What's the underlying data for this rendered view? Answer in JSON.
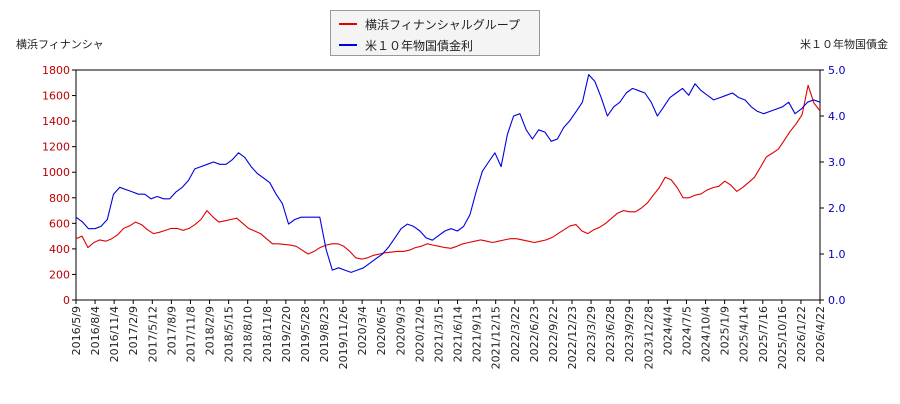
{
  "chart_data": {
    "type": "line",
    "left_axis_label": "横浜フィナンシャ",
    "right_axis_label": "米１０年物国債金",
    "y_left": {
      "min": 0,
      "max": 1800,
      "ticks": [
        "0",
        "200",
        "400",
        "600",
        "800",
        "1000",
        "1200",
        "1400",
        "1600",
        "1800"
      ]
    },
    "y_right": {
      "min": 0,
      "max": 5,
      "ticks": [
        "0.0",
        "1.0",
        "2.0",
        "3.0",
        "4.0",
        "5.0"
      ]
    },
    "x_tick_labels": [
      "2016/5/9",
      "2016/8/4",
      "2016/11/4",
      "2017/2/9",
      "2017/5/12",
      "2017/8/9",
      "2017/11/8",
      "2018/2/9",
      "2018/5/15",
      "2018/8/10",
      "2018/11/8",
      "2019/2/20",
      "2019/5/28",
      "2019/8/23",
      "2019/11/26",
      "2020/3/4",
      "2020/6/5",
      "2020/9/3",
      "2020/12/9",
      "2021/3/15",
      "2021/6/14",
      "2021/9/13",
      "2021/12/15",
      "2022/3/22",
      "2022/6/23",
      "2022/9/22",
      "2022/12/23",
      "2023/3/29",
      "2023/6/28",
      "2023/9/29",
      "2023/12/28",
      "2024/4/4",
      "2024/7/5",
      "2024/10/4",
      "2025/1/9",
      "2025/4/14",
      "2025/7/16",
      "2025/10/16",
      "2026/1/22",
      "2026/4/22"
    ],
    "series": [
      {
        "name": "横浜フィナンシャルグループ",
        "axis": "left",
        "color": "#e00000",
        "values": [
          480,
          500,
          410,
          450,
          470,
          460,
          480,
          510,
          560,
          580,
          610,
          590,
          550,
          520,
          530,
          545,
          560,
          560,
          545,
          560,
          590,
          630,
          700,
          650,
          610,
          620,
          630,
          640,
          600,
          560,
          540,
          520,
          480,
          440,
          440,
          435,
          430,
          420,
          390,
          360,
          380,
          410,
          430,
          440,
          440,
          420,
          380,
          330,
          320,
          330,
          350,
          360,
          370,
          375,
          380,
          380,
          390,
          410,
          420,
          440,
          430,
          420,
          410,
          405,
          420,
          440,
          450,
          460,
          470,
          460,
          450,
          460,
          470,
          480,
          480,
          470,
          460,
          450,
          460,
          470,
          490,
          520,
          550,
          580,
          590,
          540,
          520,
          550,
          570,
          600,
          640,
          680,
          700,
          690,
          690,
          720,
          760,
          820,
          880,
          960,
          940,
          880,
          800,
          800,
          820,
          830,
          860,
          880,
          890,
          930,
          900,
          850,
          880,
          920,
          960,
          1040,
          1120,
          1150,
          1180,
          1250,
          1320,
          1380,
          1450,
          1680,
          1540,
          1480
        ]
      },
      {
        "name": "米１０年物国債金利",
        "axis": "right",
        "color": "#0000e0",
        "values": [
          1.8,
          1.7,
          1.55,
          1.55,
          1.6,
          1.75,
          2.3,
          2.45,
          2.4,
          2.35,
          2.3,
          2.3,
          2.2,
          2.25,
          2.2,
          2.2,
          2.35,
          2.45,
          2.6,
          2.85,
          2.9,
          2.95,
          3.0,
          2.95,
          2.95,
          3.05,
          3.2,
          3.1,
          2.9,
          2.75,
          2.65,
          2.55,
          2.3,
          2.1,
          1.65,
          1.75,
          1.8,
          1.8,
          1.8,
          1.8,
          1.1,
          0.65,
          0.7,
          0.65,
          0.6,
          0.65,
          0.7,
          0.8,
          0.9,
          1.0,
          1.15,
          1.35,
          1.55,
          1.65,
          1.6,
          1.5,
          1.35,
          1.3,
          1.4,
          1.5,
          1.55,
          1.5,
          1.6,
          1.85,
          2.35,
          2.8,
          3.0,
          3.2,
          2.9,
          3.6,
          4.0,
          4.05,
          3.7,
          3.5,
          3.7,
          3.65,
          3.45,
          3.5,
          3.75,
          3.9,
          4.1,
          4.3,
          4.9,
          4.75,
          4.4,
          4.0,
          4.2,
          4.3,
          4.5,
          4.6,
          4.55,
          4.5,
          4.3,
          4.0,
          4.2,
          4.4,
          4.5,
          4.6,
          4.45,
          4.7,
          4.55,
          4.45,
          4.35,
          4.4,
          4.45,
          4.5,
          4.4,
          4.35,
          4.2,
          4.1,
          4.05,
          4.1,
          4.15,
          4.2,
          4.3,
          4.05,
          4.15,
          4.3,
          4.35,
          4.3
        ]
      }
    ]
  }
}
